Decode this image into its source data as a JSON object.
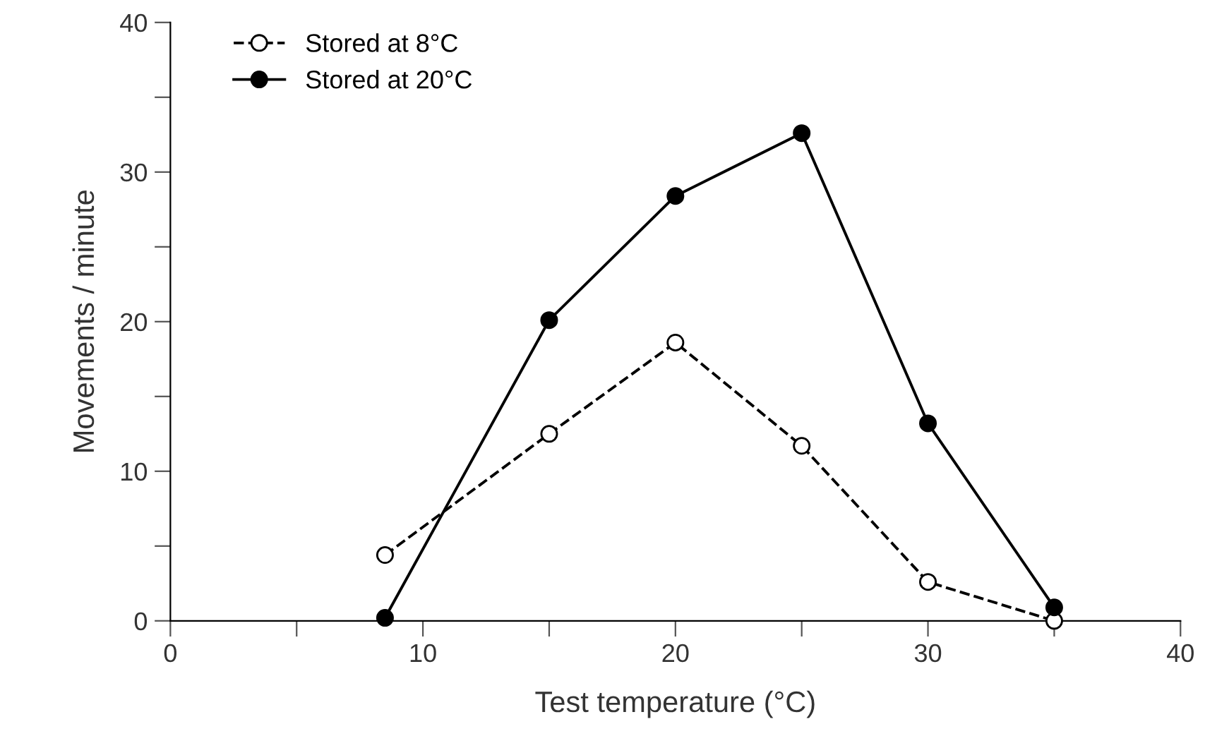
{
  "chart_data": {
    "type": "line",
    "xlabel": "Test temperature (°C)",
    "ylabel": "Movements / minute",
    "xlim": [
      0,
      40
    ],
    "xticks": [
      0,
      {
        "value": 5,
        "label": null
      },
      10,
      {
        "value": 15,
        "label": null
      },
      20,
      {
        "value": 25,
        "label": null
      },
      30,
      {
        "value": 35,
        "label": null
      },
      40
    ],
    "ylim": [
      0,
      40
    ],
    "yticks": [
      0,
      {
        "value": 5,
        "label": null
      },
      10,
      {
        "value": 15,
        "label": null
      },
      20,
      {
        "value": 25,
        "label": null
      },
      30,
      {
        "value": 35,
        "label": null
      },
      40
    ],
    "grid": false,
    "legend": "top left",
    "series": [
      {
        "name": "Stored at 8°C",
        "color": "#000000",
        "x": [
          8.5,
          15,
          20,
          25,
          30,
          35
        ],
        "values": [
          4.4,
          12.5,
          18.6,
          11.7,
          2.6,
          0
        ],
        "marker": "circle",
        "line_style": "dashed"
      },
      {
        "name": "Stored at 20°C",
        "color": "#000000",
        "x": [
          8.5,
          15,
          20,
          25,
          30,
          35
        ],
        "values": [
          0.2,
          20.1,
          28.4,
          32.6,
          13.2,
          0.9
        ],
        "marker": "circle",
        "line_style": "solid"
      }
    ]
  }
}
